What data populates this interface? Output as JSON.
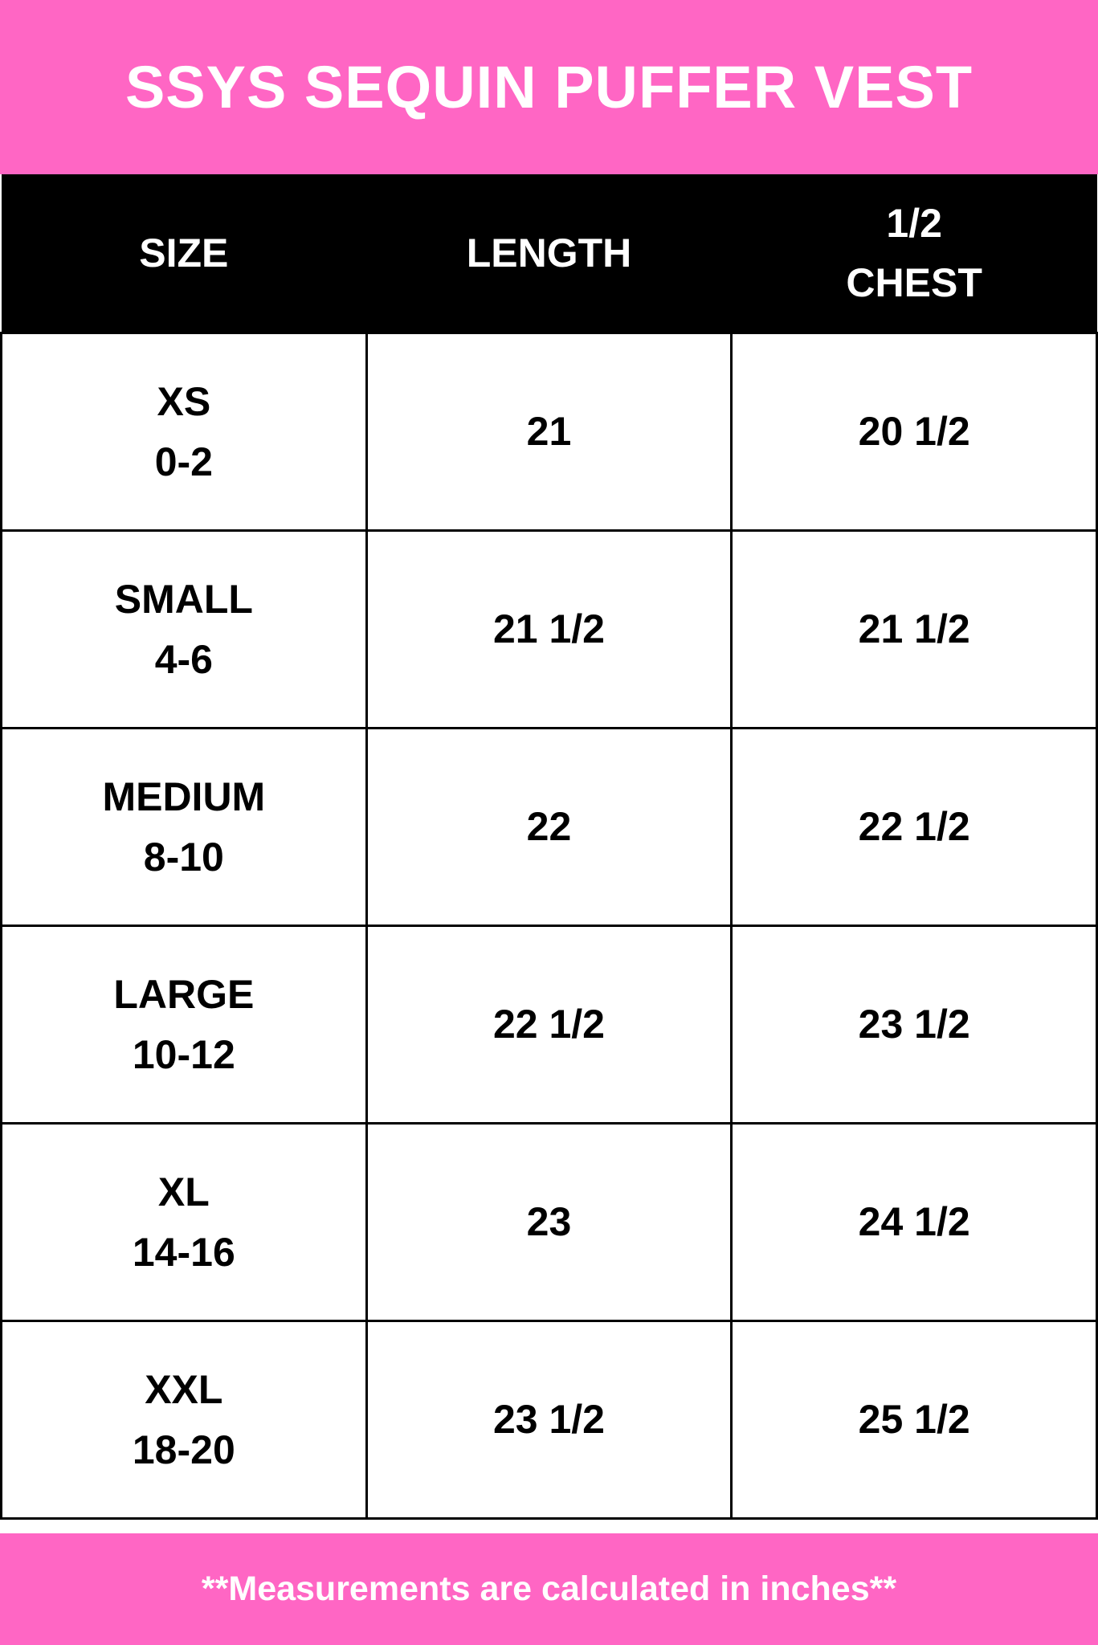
{
  "title": "SSYS SEQUIN PUFFER VEST",
  "colors": {
    "accent": "#ff66c4",
    "header_bg": "#000000"
  },
  "table": {
    "headers": [
      "SIZE",
      "LENGTH",
      "1/2 CHEST"
    ],
    "header_lines": {
      "chest_1": "1/2",
      "chest_2": "CHEST"
    },
    "rows": [
      {
        "size": "XS",
        "range": "0-2",
        "length": "21",
        "chest": "20 1/2"
      },
      {
        "size": "SMALL",
        "range": "4-6",
        "length": "21 1/2",
        "chest": "21 1/2"
      },
      {
        "size": "MEDIUM",
        "range": "8-10",
        "length": "22",
        "chest": "22 1/2"
      },
      {
        "size": "LARGE",
        "range": "10-12",
        "length": "22 1/2",
        "chest": "23 1/2"
      },
      {
        "size": "XL",
        "range": "14-16",
        "length": "23",
        "chest": "24 1/2"
      },
      {
        "size": "XXL",
        "range": "18-20",
        "length": "23 1/2",
        "chest": "25 1/2"
      }
    ]
  },
  "footer": "**Measurements are calculated in inches**"
}
